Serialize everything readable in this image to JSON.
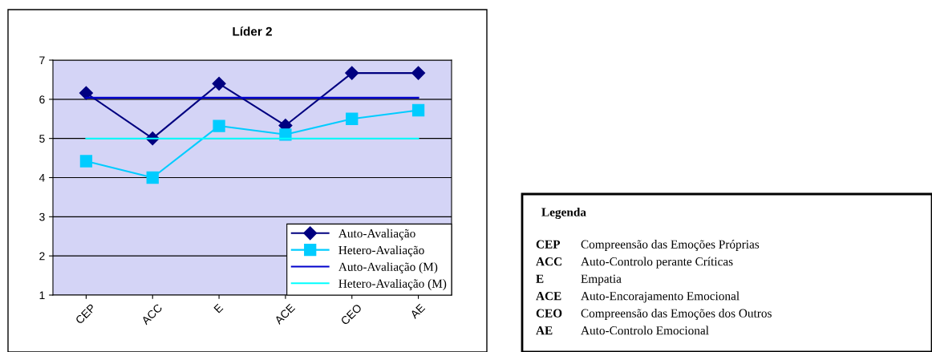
{
  "chart_data": [
    {
      "type": "line",
      "title": "Líder 2",
      "categories": [
        "CEP",
        "ACC",
        "E",
        "ACE",
        "CEO",
        "AE"
      ],
      "series": [
        {
          "name": "Auto-Avaliação",
          "color": "#000080",
          "marker": "diamond",
          "values": [
            6.16,
            5.0,
            6.4,
            5.33,
            6.67,
            6.67
          ]
        },
        {
          "name": "Hetero-Avaliação",
          "color": "#00ccff",
          "marker": "square",
          "values": [
            4.42,
            4.0,
            5.32,
            5.1,
            5.5,
            5.72
          ]
        },
        {
          "name": "Auto-Avaliação (M)",
          "color": "#0000cc",
          "marker": "none",
          "values": [
            6.04,
            6.04,
            6.04,
            6.04,
            6.04,
            6.04
          ]
        },
        {
          "name": "Hetero-Avaliação (M)",
          "color": "#00ffff",
          "marker": "none",
          "values": [
            5.0,
            5.0,
            5.0,
            5.0,
            5.0,
            5.0
          ]
        }
      ],
      "ylim": [
        1,
        7
      ],
      "yticks": [
        1,
        2,
        3,
        4,
        5,
        6,
        7
      ],
      "grid": "y",
      "legend": "bottom right"
    },
    {
      "type": "other",
      "title": "Legenda",
      "categories": [
        "CEP",
        "ACC",
        "E",
        "ACE",
        "CEO",
        "AE"
      ],
      "annotations": [
        "Compreensão das Emoções Próprias",
        "Auto-Controlo perante Críticas",
        "Empatia",
        "Auto-Encorajamento Emocional",
        "Compreensão das Emoções dos Outros",
        "Auto-Controlo Emocional"
      ]
    }
  ]
}
